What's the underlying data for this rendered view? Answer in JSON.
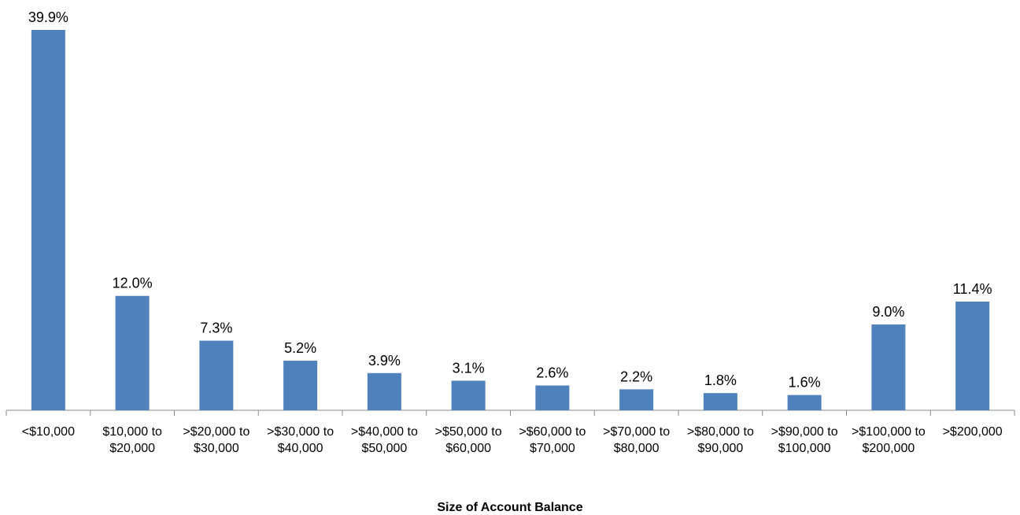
{
  "chart_data": {
    "type": "bar",
    "x_label": "Size of Account Balance",
    "categories": [
      "<$10,000",
      "$10,000 to $20,000",
      ">$20,000 to $30,000",
      ">$30,000 to $40,000",
      ">$40,000 to $50,000",
      ">$50,000 to $60,000",
      ">$60,000 to $70,000",
      ">$70,000 to $80,000",
      ">$80,000 to $90,000",
      ">$90,000 to $100,000",
      ">$100,000 to $200,000",
      ">$200,000"
    ],
    "values": [
      39.9,
      12.0,
      7.3,
      5.2,
      3.9,
      3.1,
      2.6,
      2.2,
      1.8,
      1.6,
      9.0,
      11.4
    ],
    "value_labels": [
      "39.9%",
      "12.0%",
      "7.3%",
      "5.2%",
      "3.9%",
      "3.1%",
      "2.6%",
      "2.2%",
      "1.8%",
      "1.6%",
      "9.0%",
      "11.4%"
    ],
    "color": "#4f81bd"
  }
}
